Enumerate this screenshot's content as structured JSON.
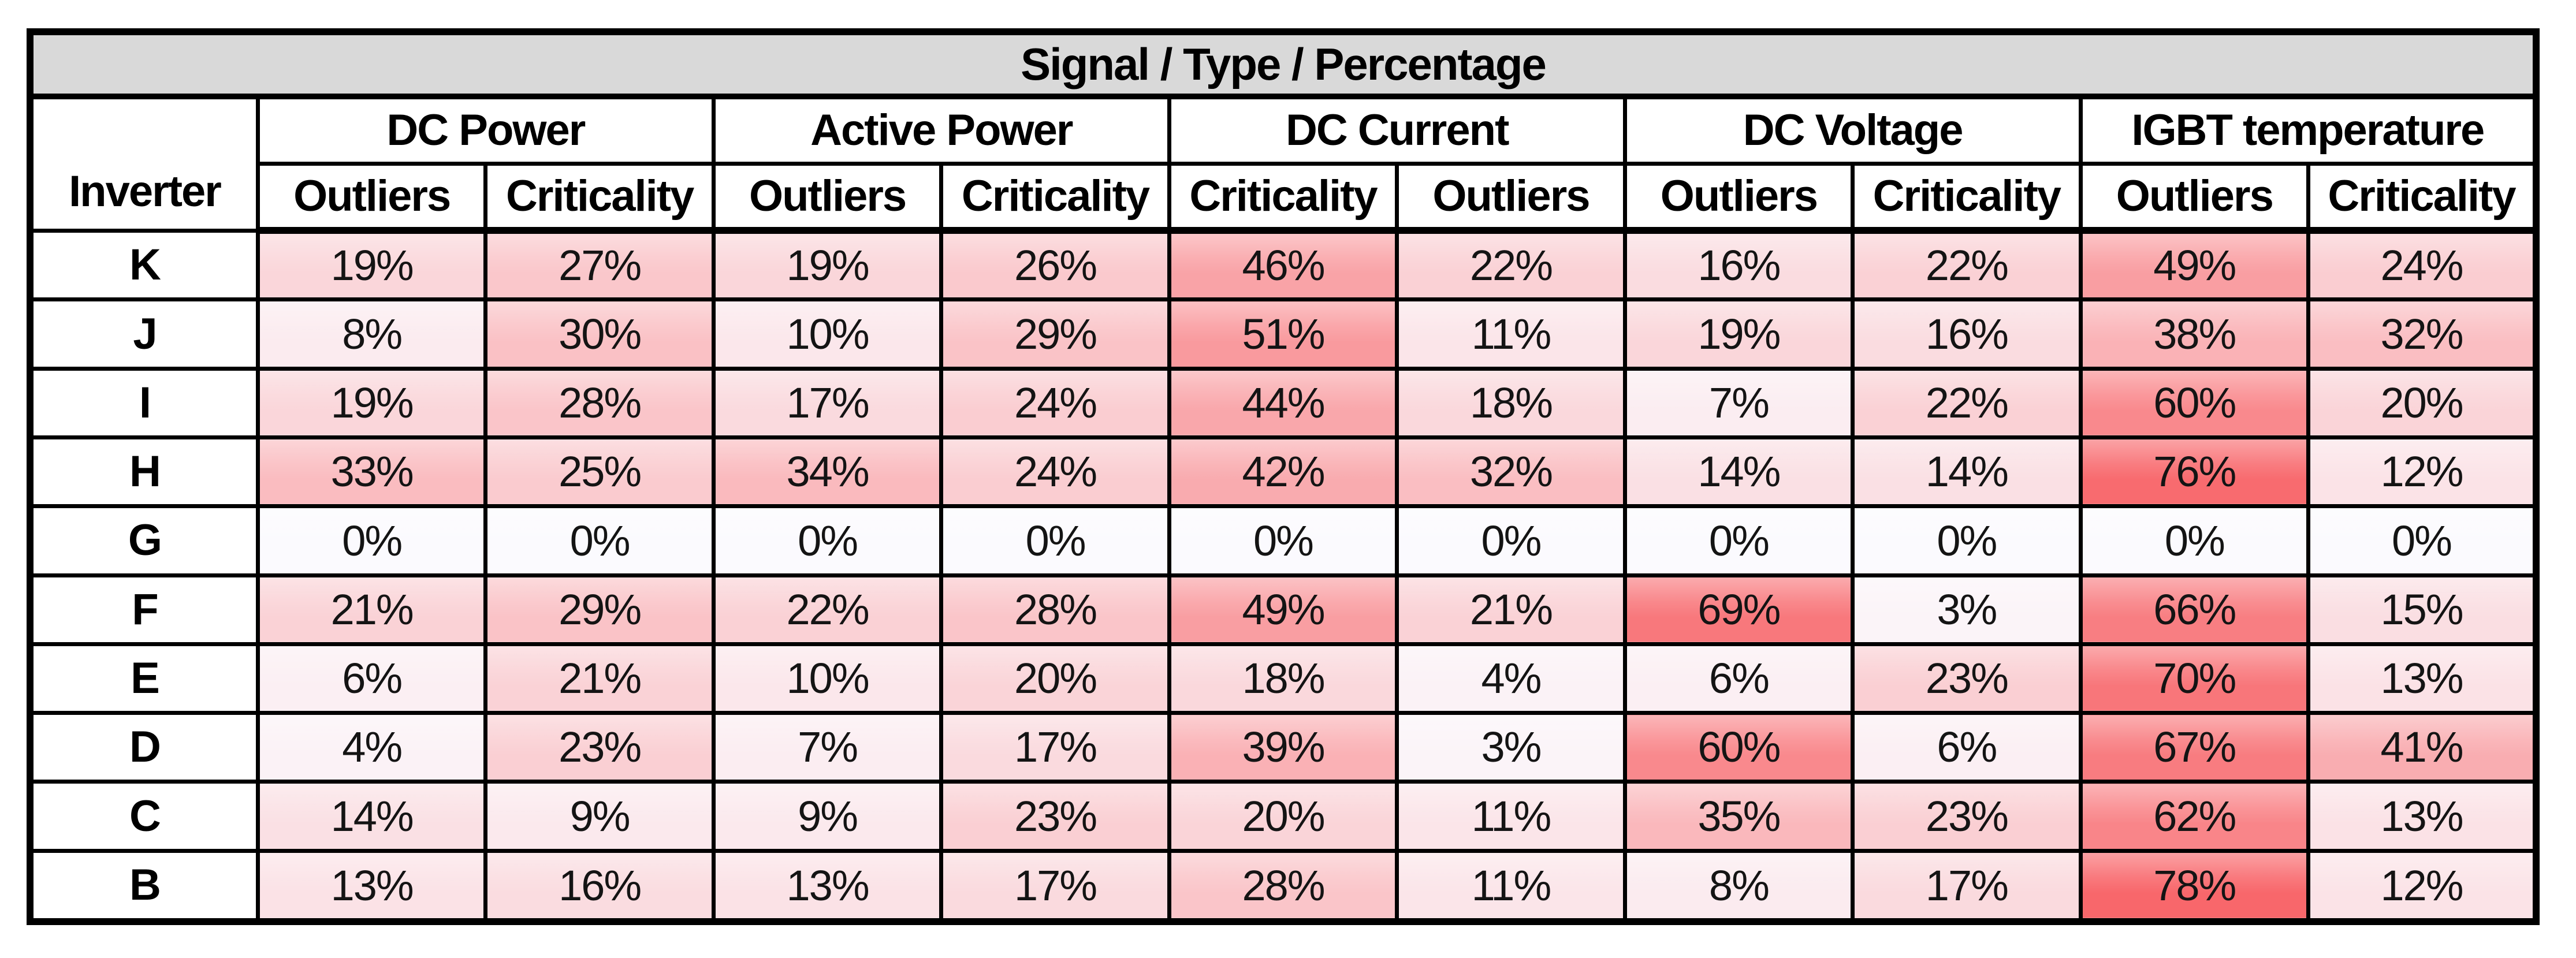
{
  "chart_data": {
    "type": "heatmap",
    "title": "Signal / Type / Percentage",
    "row_header": "Inverter",
    "unit": "%",
    "legend_position": "none",
    "grid": true,
    "groups": [
      {
        "label": "DC Power",
        "sub": [
          "Outliers",
          "Criticality"
        ]
      },
      {
        "label": "Active Power",
        "sub": [
          "Outliers",
          "Criticality"
        ]
      },
      {
        "label": "DC Current",
        "sub": [
          "Criticality",
          "Outliers"
        ]
      },
      {
        "label": "DC Voltage",
        "sub": [
          "Outliers",
          "Criticality"
        ]
      },
      {
        "label": "IGBT temperature",
        "sub": [
          "Outliers",
          "Criticality"
        ]
      }
    ],
    "sub_labels": [
      "Outliers",
      "Criticality",
      "Outliers",
      "Criticality",
      "Criticality",
      "Outliers",
      "Outliers",
      "Criticality",
      "Outliers",
      "Criticality"
    ],
    "rows": [
      {
        "label": "K",
        "values": [
          19,
          27,
          19,
          26,
          46,
          22,
          16,
          22,
          49,
          24
        ]
      },
      {
        "label": "J",
        "values": [
          8,
          30,
          10,
          29,
          51,
          11,
          19,
          16,
          38,
          32
        ]
      },
      {
        "label": "I",
        "values": [
          19,
          28,
          17,
          24,
          44,
          18,
          7,
          22,
          60,
          20
        ]
      },
      {
        "label": "H",
        "values": [
          33,
          25,
          34,
          24,
          42,
          32,
          14,
          14,
          76,
          12
        ]
      },
      {
        "label": "G",
        "values": [
          0,
          0,
          0,
          0,
          0,
          0,
          0,
          0,
          0,
          0
        ]
      },
      {
        "label": "F",
        "values": [
          21,
          29,
          22,
          28,
          49,
          21,
          69,
          3,
          66,
          15
        ]
      },
      {
        "label": "E",
        "values": [
          6,
          21,
          10,
          20,
          18,
          4,
          6,
          23,
          70,
          13
        ]
      },
      {
        "label": "D",
        "values": [
          4,
          23,
          7,
          17,
          39,
          3,
          60,
          6,
          67,
          41
        ]
      },
      {
        "label": "C",
        "values": [
          14,
          9,
          9,
          23,
          20,
          11,
          35,
          23,
          62,
          13
        ]
      },
      {
        "label": "B",
        "values": [
          13,
          16,
          13,
          17,
          28,
          11,
          8,
          17,
          78,
          12
        ]
      }
    ],
    "heatmap": {
      "min_value": 0,
      "max_value": 78,
      "min_color": "#FBFAFE",
      "max_color": "#F8676B"
    },
    "colors": {
      "title_bg": "#D9D9D9",
      "header_bg": "#FFFFFF",
      "border": "#000000",
      "page_bg": "#FFFFFF"
    }
  }
}
